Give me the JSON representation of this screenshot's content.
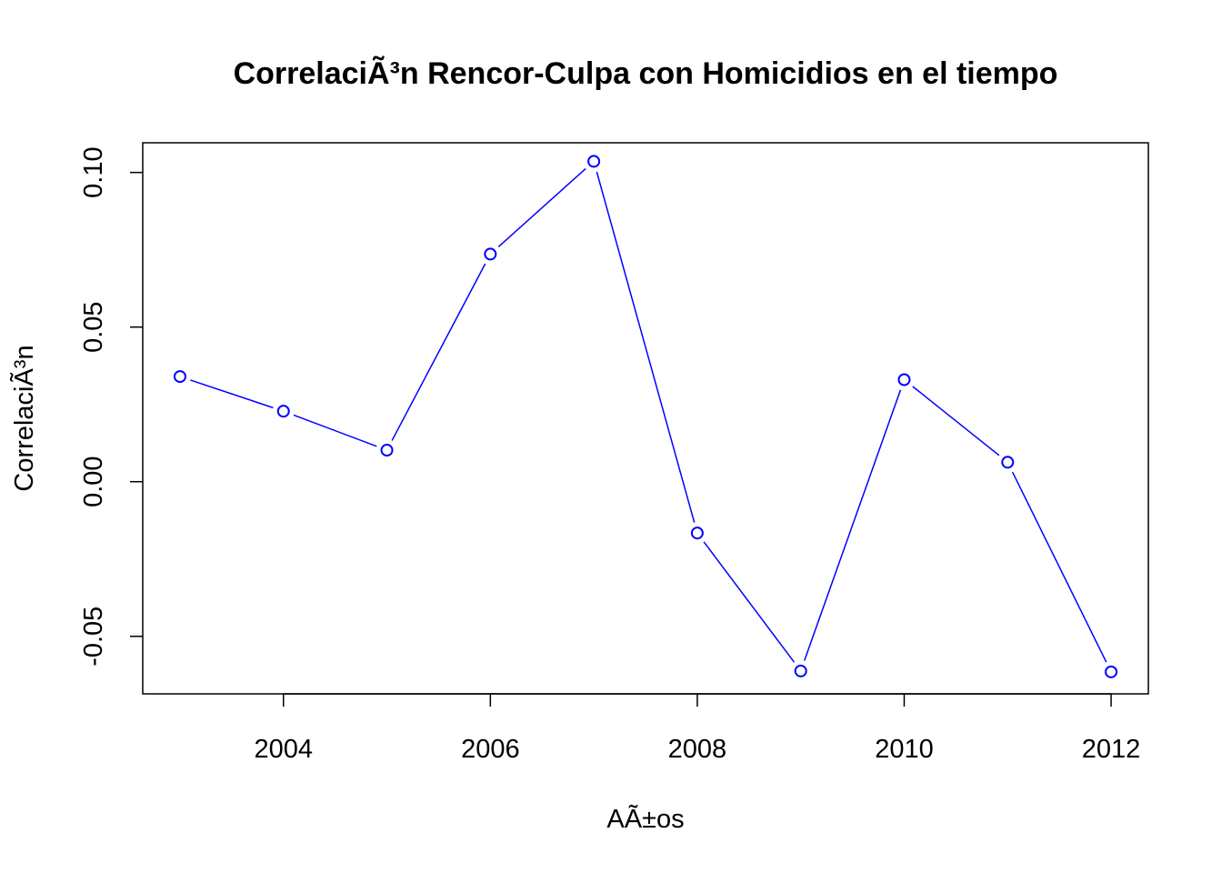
{
  "chart_data": {
    "type": "line",
    "title": "CorrelaciÃ³n Rencor-Culpa con Homicidios en el tiempo",
    "xlabel": "AÃ±os",
    "ylabel": "CorrelaciÃ³n",
    "x": [
      2003,
      2004,
      2005,
      2006,
      2007,
      2008,
      2009,
      2010,
      2011,
      2012
    ],
    "series": [
      {
        "values": [
          0.034,
          0.0228,
          0.0102,
          0.0736,
          0.1036,
          -0.0166,
          -0.0612,
          0.033,
          0.0063,
          -0.0615
        ]
      }
    ],
    "x_ticks": [
      "2004",
      "2006",
      "2008",
      "2010",
      "2012"
    ],
    "y_ticks": [
      "-0.05",
      "0.00",
      "0.05",
      "0.10"
    ],
    "xlim": [
      2002.64,
      2012.36
    ],
    "ylim": [
      -0.0686,
      0.1096
    ],
    "grid": false,
    "legend": "none",
    "line_color": "#0000ff",
    "marker": "open-circle"
  }
}
